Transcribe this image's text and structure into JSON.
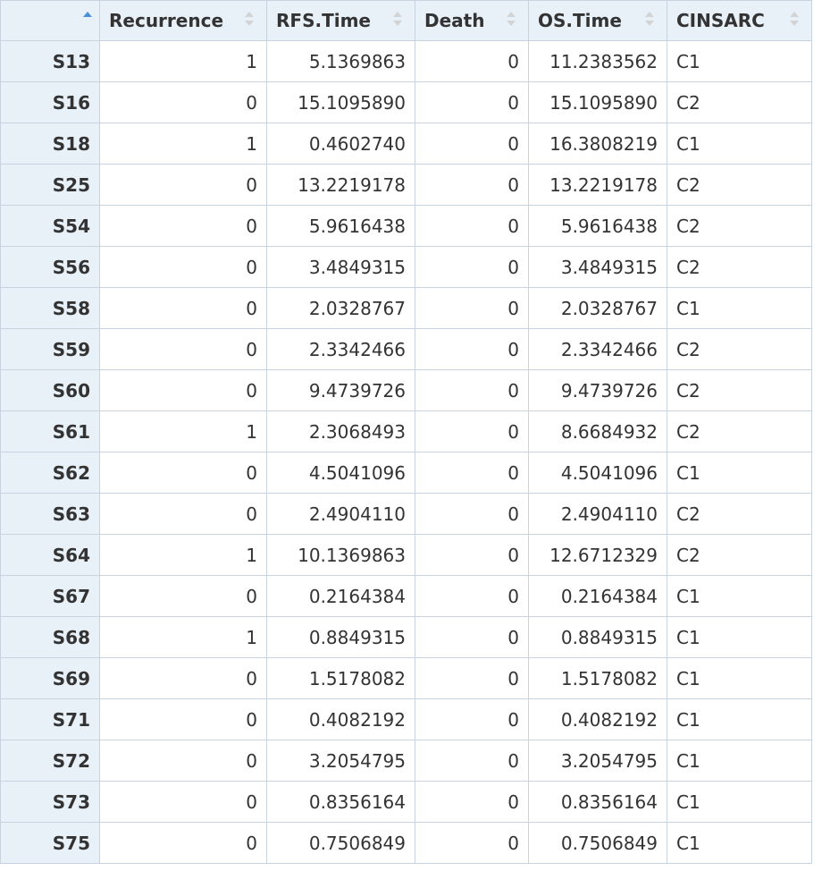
{
  "columns": [
    "",
    "Recurrence",
    "RFS.Time",
    "Death",
    "OS.Time",
    "CINSARC"
  ],
  "rows": [
    {
      "id": "S13",
      "recurrence": "1",
      "rfs_time": "5.1369863",
      "death": "0",
      "os_time": "11.2383562",
      "cinsarc": "C1"
    },
    {
      "id": "S16",
      "recurrence": "0",
      "rfs_time": "15.1095890",
      "death": "0",
      "os_time": "15.1095890",
      "cinsarc": "C2"
    },
    {
      "id": "S18",
      "recurrence": "1",
      "rfs_time": "0.4602740",
      "death": "0",
      "os_time": "16.3808219",
      "cinsarc": "C1"
    },
    {
      "id": "S25",
      "recurrence": "0",
      "rfs_time": "13.2219178",
      "death": "0",
      "os_time": "13.2219178",
      "cinsarc": "C2"
    },
    {
      "id": "S54",
      "recurrence": "0",
      "rfs_time": "5.9616438",
      "death": "0",
      "os_time": "5.9616438",
      "cinsarc": "C2"
    },
    {
      "id": "S56",
      "recurrence": "0",
      "rfs_time": "3.4849315",
      "death": "0",
      "os_time": "3.4849315",
      "cinsarc": "C2"
    },
    {
      "id": "S58",
      "recurrence": "0",
      "rfs_time": "2.0328767",
      "death": "0",
      "os_time": "2.0328767",
      "cinsarc": "C1"
    },
    {
      "id": "S59",
      "recurrence": "0",
      "rfs_time": "2.3342466",
      "death": "0",
      "os_time": "2.3342466",
      "cinsarc": "C2"
    },
    {
      "id": "S60",
      "recurrence": "0",
      "rfs_time": "9.4739726",
      "death": "0",
      "os_time": "9.4739726",
      "cinsarc": "C2"
    },
    {
      "id": "S61",
      "recurrence": "1",
      "rfs_time": "2.3068493",
      "death": "0",
      "os_time": "8.6684932",
      "cinsarc": "C2"
    },
    {
      "id": "S62",
      "recurrence": "0",
      "rfs_time": "4.5041096",
      "death": "0",
      "os_time": "4.5041096",
      "cinsarc": "C1"
    },
    {
      "id": "S63",
      "recurrence": "0",
      "rfs_time": "2.4904110",
      "death": "0",
      "os_time": "2.4904110",
      "cinsarc": "C2"
    },
    {
      "id": "S64",
      "recurrence": "1",
      "rfs_time": "10.1369863",
      "death": "0",
      "os_time": "12.6712329",
      "cinsarc": "C2"
    },
    {
      "id": "S67",
      "recurrence": "0",
      "rfs_time": "0.2164384",
      "death": "0",
      "os_time": "0.2164384",
      "cinsarc": "C1"
    },
    {
      "id": "S68",
      "recurrence": "1",
      "rfs_time": "0.8849315",
      "death": "0",
      "os_time": "0.8849315",
      "cinsarc": "C1"
    },
    {
      "id": "S69",
      "recurrence": "0",
      "rfs_time": "1.5178082",
      "death": "0",
      "os_time": "1.5178082",
      "cinsarc": "C1"
    },
    {
      "id": "S71",
      "recurrence": "0",
      "rfs_time": "0.4082192",
      "death": "0",
      "os_time": "0.4082192",
      "cinsarc": "C1"
    },
    {
      "id": "S72",
      "recurrence": "0",
      "rfs_time": "3.2054795",
      "death": "0",
      "os_time": "3.2054795",
      "cinsarc": "C1"
    },
    {
      "id": "S73",
      "recurrence": "0",
      "rfs_time": "0.8356164",
      "death": "0",
      "os_time": "0.8356164",
      "cinsarc": "C1"
    },
    {
      "id": "S75",
      "recurrence": "0",
      "rfs_time": "0.7506849",
      "death": "0",
      "os_time": "0.7506849",
      "cinsarc": "C1"
    }
  ],
  "icons": {
    "sort_active": "sort-ascending-icon",
    "sort_idle": "sort-updown-icon"
  },
  "colors": {
    "header_bg": "#e8f0f8",
    "border": "#c8d3e0",
    "sort_active": "#4a90d9"
  }
}
